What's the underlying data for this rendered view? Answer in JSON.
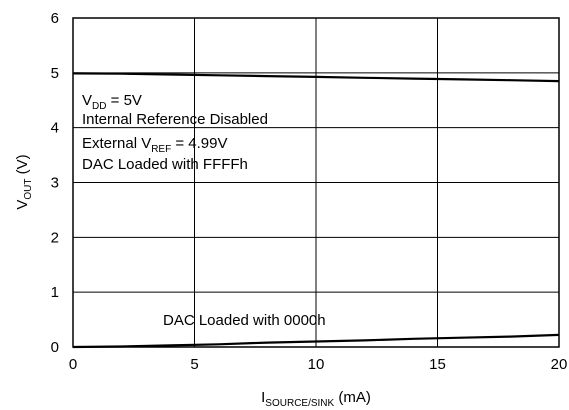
{
  "chart_data": {
    "type": "line",
    "xlabel": {
      "main": "I",
      "sub": "SOURCE/SINK",
      "rest": " (mA)"
    },
    "ylabel": {
      "main": "V",
      "sub": "OUT",
      "rest": " (V)"
    },
    "xlim": [
      0,
      20
    ],
    "ylim": [
      0,
      6
    ],
    "x_ticks": [
      0,
      5,
      10,
      15,
      20
    ],
    "y_ticks": [
      0,
      1,
      2,
      3,
      4,
      5,
      6
    ],
    "x_tick_labels": [
      "0",
      "5",
      "10",
      "15",
      "20"
    ],
    "y_tick_labels": [
      "0",
      "1",
      "2",
      "3",
      "4",
      "5",
      "6"
    ],
    "grid": true,
    "series": [
      {
        "x": [
          0,
          2,
          4,
          6,
          8,
          10,
          12,
          14,
          16,
          18,
          20
        ],
        "y": [
          4.99,
          4.985,
          4.97,
          4.955,
          4.94,
          4.925,
          4.91,
          4.895,
          4.88,
          4.865,
          4.85
        ],
        "color": "#000000"
      },
      {
        "x": [
          0,
          2,
          4,
          6,
          8,
          10,
          12,
          14,
          16,
          18,
          20
        ],
        "y": [
          0.0,
          0.01,
          0.03,
          0.05,
          0.08,
          0.1,
          0.12,
          0.15,
          0.17,
          0.19,
          0.22
        ],
        "color": "#000000"
      }
    ],
    "annotations": {
      "vdd": {
        "main": "V",
        "sub": "DD",
        "rest": " = 5V"
      },
      "ref_disabled": "Internal Reference Disabled",
      "vref": {
        "pre": "External V",
        "sub": "REF",
        "rest": " = 4.99V"
      },
      "dac_full": "DAC Loaded with FFFFh",
      "dac_zero": "DAC Loaded with 0000h"
    }
  }
}
